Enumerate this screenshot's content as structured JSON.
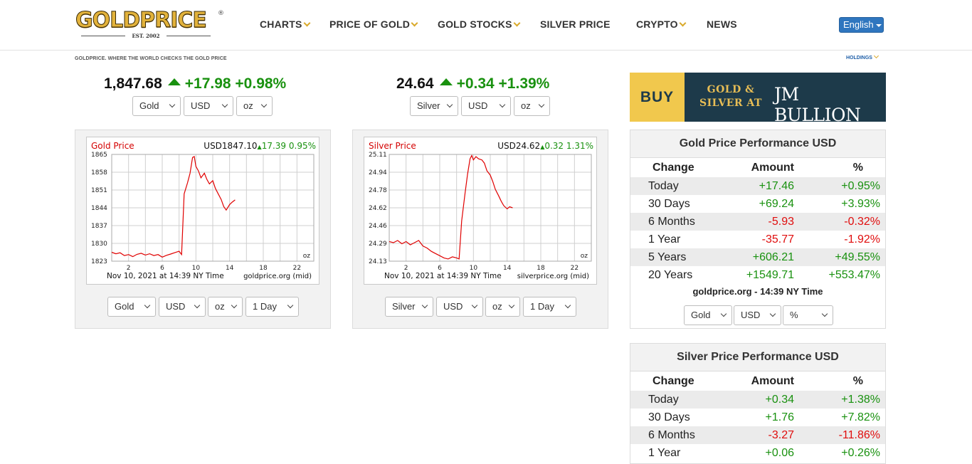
{
  "logo": {
    "text": "GOLDPRICE",
    "reg": "®",
    "est": "EST. 2002"
  },
  "nav": [
    {
      "label": "CHARTS",
      "dropdown": true
    },
    {
      "label": "PRICE OF GOLD",
      "dropdown": true
    },
    {
      "label": "GOLD STOCKS",
      "dropdown": true
    },
    {
      "label": "SILVER PRICE",
      "dropdown": false
    },
    {
      "label": "CRYPTO",
      "dropdown": true
    },
    {
      "label": "NEWS",
      "dropdown": false
    }
  ],
  "language": "English",
  "tagline": "GOLDPRICE.  WHERE THE WORLD CHECKS THE GOLD PRICE",
  "holdings": "HOLDINGS",
  "gold_quote": {
    "price": "1,847.68",
    "change": "+17.98",
    "pct": "+0.98%",
    "metal": "Gold",
    "currency": "USD",
    "unit": "oz"
  },
  "silver_quote": {
    "price": "24.64",
    "change": "+0.34",
    "pct": "+1.39%",
    "metal": "Silver",
    "currency": "USD",
    "unit": "oz"
  },
  "ad": {
    "buy": "BUY",
    "line1": "GOLD &",
    "line2": "SILVER AT",
    "brand": "JM BULLION"
  },
  "colors": {
    "up": "#19910f",
    "down": "#e00d0d",
    "chart_line": "#e00000",
    "gold": "#e2b23b",
    "nav_chevron": "#d9a92a",
    "button": "#2f76bf"
  },
  "chart_data": [
    {
      "type": "line",
      "title": "Gold Price",
      "header_price": "USD1847.10",
      "header_change": "17.39",
      "header_pct": "0.95%",
      "unit_label": "oz",
      "footer": "Nov 10, 2021 at 14:39 NY Time",
      "source": "goldprice.org (mid)",
      "x_ticks": [
        "2",
        "6",
        "10",
        "14",
        "18",
        "22"
      ],
      "y_ticks": [
        "1865",
        "1858",
        "1851",
        "1844",
        "1837",
        "1830",
        "1823"
      ],
      "ylim": [
        1823,
        1865
      ],
      "xlim": [
        0,
        24
      ],
      "grid": true,
      "series": [
        {
          "x": [
            0,
            0.5,
            1,
            1.5,
            2,
            2.5,
            3,
            3.5,
            4,
            4.5,
            5,
            5.5,
            6,
            6.5,
            7,
            7.5,
            8,
            8.3,
            8.6,
            9,
            9.3,
            9.6,
            9.8,
            10,
            10.3,
            10.6,
            11,
            11.3,
            11.6,
            12,
            12.3,
            12.6,
            13,
            13.3,
            13.6,
            14,
            14.3,
            14.65
          ],
          "y": [
            1826.5,
            1825.9,
            1826.3,
            1825.2,
            1825.6,
            1824.8,
            1825.7,
            1826.1,
            1825.4,
            1825.9,
            1825.2,
            1825.6,
            1824.6,
            1825.3,
            1825.8,
            1826.4,
            1826.9,
            1825.6,
            1849.5,
            1853.8,
            1857.6,
            1863.8,
            1864.2,
            1860.3,
            1858.5,
            1855.8,
            1857.6,
            1855.2,
            1853.4,
            1854.7,
            1851.7,
            1849.8,
            1847.3,
            1844.5,
            1843.1,
            1845.3,
            1846.2,
            1847.1
          ]
        }
      ]
    },
    {
      "type": "line",
      "title": "Silver Price",
      "header_price": "USD24.62",
      "header_change": "0.32",
      "header_pct": "1.31%",
      "unit_label": "oz",
      "footer": "Nov 10, 2021 at 14:39 NY Time",
      "source": "silverprice.org (mid)",
      "x_ticks": [
        "2",
        "6",
        "10",
        "14",
        "18",
        "22"
      ],
      "y_ticks": [
        "25.11",
        "24.94",
        "24.78",
        "24.62",
        "24.46",
        "24.29",
        "24.13"
      ],
      "ylim": [
        24.13,
        25.11
      ],
      "xlim": [
        0,
        24
      ],
      "grid": true,
      "series": [
        {
          "x": [
            0,
            0.5,
            1,
            1.5,
            2,
            2.5,
            3,
            3.5,
            4,
            4.5,
            5,
            5.5,
            6,
            6.5,
            7,
            7.5,
            8,
            8.3,
            8.6,
            9,
            9.3,
            9.6,
            9.8,
            10,
            10.3,
            10.6,
            11,
            11.3,
            11.6,
            12,
            12.3,
            12.6,
            13,
            13.3,
            13.6,
            14,
            14.3,
            14.65
          ],
          "y": [
            24.31,
            24.3,
            24.32,
            24.29,
            24.31,
            24.28,
            24.3,
            24.32,
            24.27,
            24.25,
            24.22,
            24.2,
            24.18,
            24.16,
            24.15,
            24.17,
            24.16,
            24.15,
            24.5,
            24.75,
            24.93,
            25.07,
            25.1,
            25.06,
            25.09,
            25.07,
            25.06,
            25.03,
            24.96,
            24.92,
            24.86,
            24.79,
            24.73,
            24.68,
            24.64,
            24.61,
            24.63,
            24.62
          ]
        }
      ]
    }
  ],
  "chart_controls": {
    "gold": {
      "metal": "Gold",
      "currency": "USD",
      "unit": "oz",
      "range": "1 Day"
    },
    "silver": {
      "metal": "Silver",
      "currency": "USD",
      "unit": "oz",
      "range": "1 Day"
    }
  },
  "gold_perf": {
    "title": "Gold Price Performance USD",
    "headers": [
      "Change",
      "Amount",
      "%"
    ],
    "rows": [
      {
        "period": "Today",
        "amount": "+17.46",
        "pct": "+0.95%",
        "dir": "pos"
      },
      {
        "period": "30 Days",
        "amount": "+69.24",
        "pct": "+3.93%",
        "dir": "pos"
      },
      {
        "period": "6 Months",
        "amount": "-5.93",
        "pct": "-0.32%",
        "dir": "neg"
      },
      {
        "period": "1 Year",
        "amount": "-35.77",
        "pct": "-1.92%",
        "dir": "neg"
      },
      {
        "period": "5 Years",
        "amount": "+606.21",
        "pct": "+49.55%",
        "dir": "pos"
      },
      {
        "period": "20 Years",
        "amount": "+1549.71",
        "pct": "+553.47%",
        "dir": "pos"
      }
    ],
    "footer": "goldprice.org - 14:39 NY Time",
    "controls": {
      "metal": "Gold",
      "currency": "USD",
      "mode": "%"
    }
  },
  "silver_perf": {
    "title": "Silver Price Performance USD",
    "headers": [
      "Change",
      "Amount",
      "%"
    ],
    "rows": [
      {
        "period": "Today",
        "amount": "+0.34",
        "pct": "+1.38%",
        "dir": "pos"
      },
      {
        "period": "30 Days",
        "amount": "+1.76",
        "pct": "+7.82%",
        "dir": "pos"
      },
      {
        "period": "6 Months",
        "amount": "-3.27",
        "pct": "-11.86%",
        "dir": "neg"
      },
      {
        "period": "1 Year",
        "amount": "+0.06",
        "pct": "+0.26%",
        "dir": "pos"
      }
    ]
  }
}
